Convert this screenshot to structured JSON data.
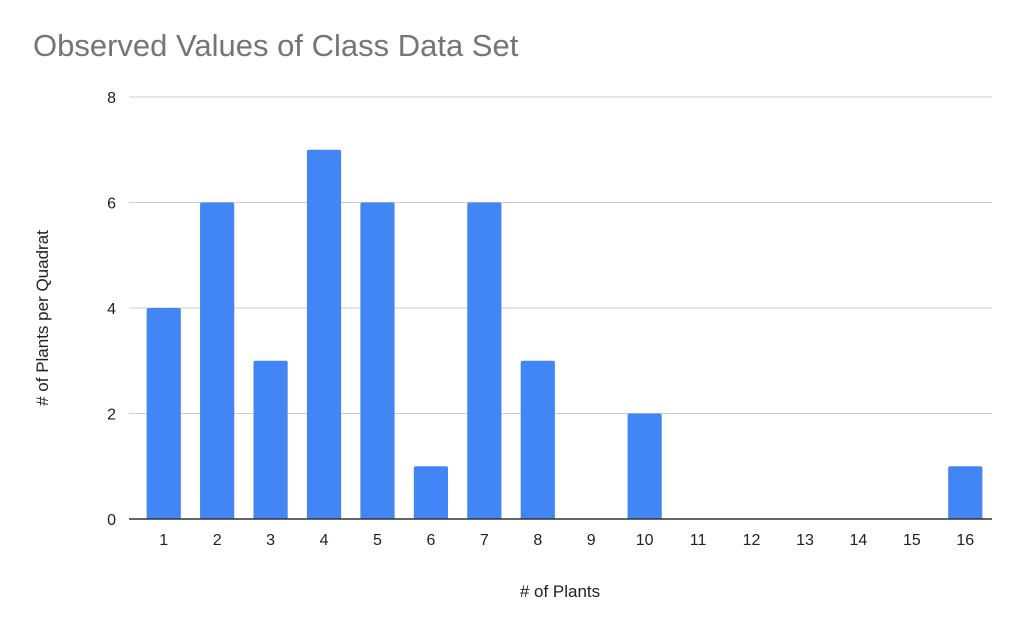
{
  "chart_data": {
    "type": "bar",
    "title": "Observed Values of Class Data Set",
    "xlabel": "# of Plants",
    "ylabel": "# of Plants per Quadrat",
    "categories": [
      "1",
      "2",
      "3",
      "4",
      "5",
      "6",
      "7",
      "8",
      "9",
      "10",
      "11",
      "12",
      "13",
      "14",
      "15",
      "16"
    ],
    "values": [
      4,
      6,
      3,
      7,
      6,
      1,
      6,
      3,
      0,
      2,
      0,
      0,
      0,
      0,
      0,
      1
    ],
    "ylim": [
      0,
      8
    ],
    "yticks": [
      "0",
      "2",
      "4",
      "6",
      "8"
    ],
    "grid": true,
    "legend": "none",
    "colors": {
      "bar": "#4285f4",
      "grid": "#cccccc",
      "axis": "#333333",
      "title": "#757575",
      "text": "#222222"
    }
  }
}
